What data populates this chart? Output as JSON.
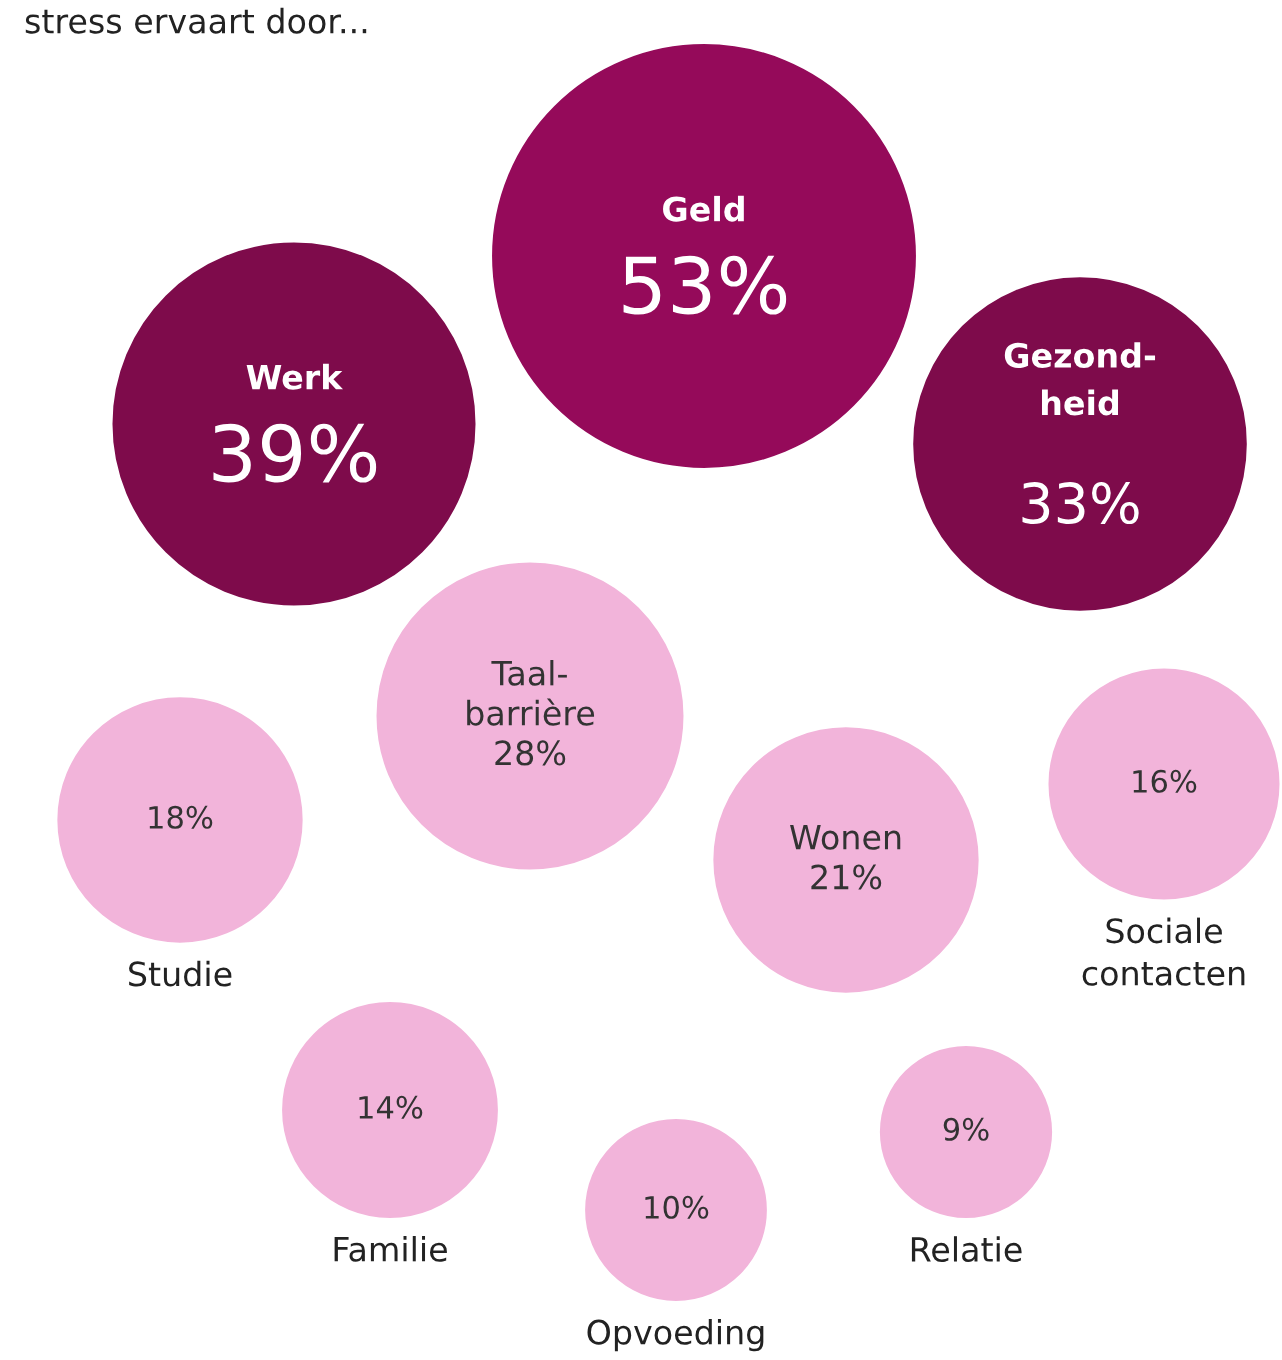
{
  "chart_data": {
    "type": "other",
    "title": "stress ervaart door...",
    "categories": [
      "Geld",
      "Werk",
      "Gezond-\nheid",
      "Taal-\nbarrière",
      "Studie",
      "Wonen",
      "Sociale\ncontacten",
      "Familie",
      "Opvoeding",
      "Relatie"
    ],
    "values": [
      53,
      39,
      33,
      28,
      18,
      21,
      16,
      14,
      10,
      9
    ],
    "value_labels": [
      "53%",
      "39%",
      "33%",
      "28%",
      "18%",
      "21%",
      "16%",
      "14%",
      "10%",
      "9%"
    ],
    "colors": [
      "#950a5a",
      "#7e0b4b",
      "#7e0b4b",
      "#f2b4da",
      "#f2b4da",
      "#f2b4da",
      "#f2b4da",
      "#f2b4da",
      "#f2b4da",
      "#f2b4da"
    ]
  }
}
